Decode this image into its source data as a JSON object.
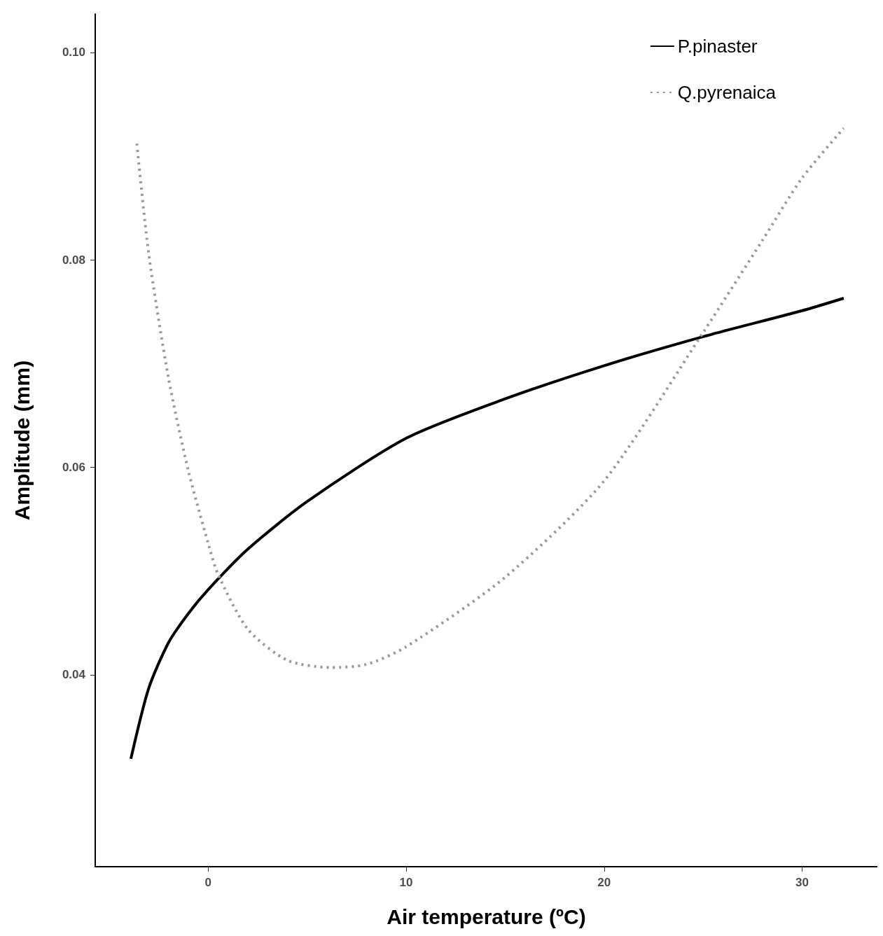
{
  "chart_data": {
    "type": "line",
    "xlabel": "Air temperature (ºC)",
    "ylabel": "Amplitude (mm)",
    "xlim": [
      -5.7,
      33.8
    ],
    "xticks": [
      0,
      10,
      20,
      30
    ],
    "ylim": [
      0.0215,
      0.1037
    ],
    "yticks": [
      {
        "value": 0.04,
        "label": "0.04"
      },
      {
        "value": 0.06,
        "label": "0.06"
      },
      {
        "value": 0.08,
        "label": "0.08"
      },
      {
        "value": 0.1,
        "label": "0.10"
      }
    ],
    "grid": false,
    "legend": "top right",
    "series": [
      {
        "name": "P.pinaster",
        "color": "#000000",
        "line_style": "solid",
        "x": [
          -3.9,
          -3,
          -2,
          -1,
          0,
          2,
          5,
          10,
          15,
          20,
          25,
          30,
          32.1
        ],
        "values": [
          0.0319,
          0.0387,
          0.0431,
          0.0459,
          0.0482,
          0.0521,
          0.0567,
          0.0628,
          0.0666,
          0.0698,
          0.0726,
          0.0751,
          0.0763
        ]
      },
      {
        "name": "Q.pyrenaica",
        "color": "#999999",
        "line_style": "dotted",
        "x": [
          -3.6,
          -3,
          -2,
          -1,
          0,
          0.5,
          2,
          4,
          6.2,
          8,
          10,
          15,
          20,
          25,
          28,
          30,
          32.1
        ],
        "values": [
          0.0912,
          0.0806,
          0.0686,
          0.0597,
          0.0527,
          0.0497,
          0.0444,
          0.0414,
          0.0407,
          0.041,
          0.0427,
          0.0494,
          0.0587,
          0.073,
          0.0819,
          0.0879,
          0.0927
        ]
      }
    ]
  }
}
